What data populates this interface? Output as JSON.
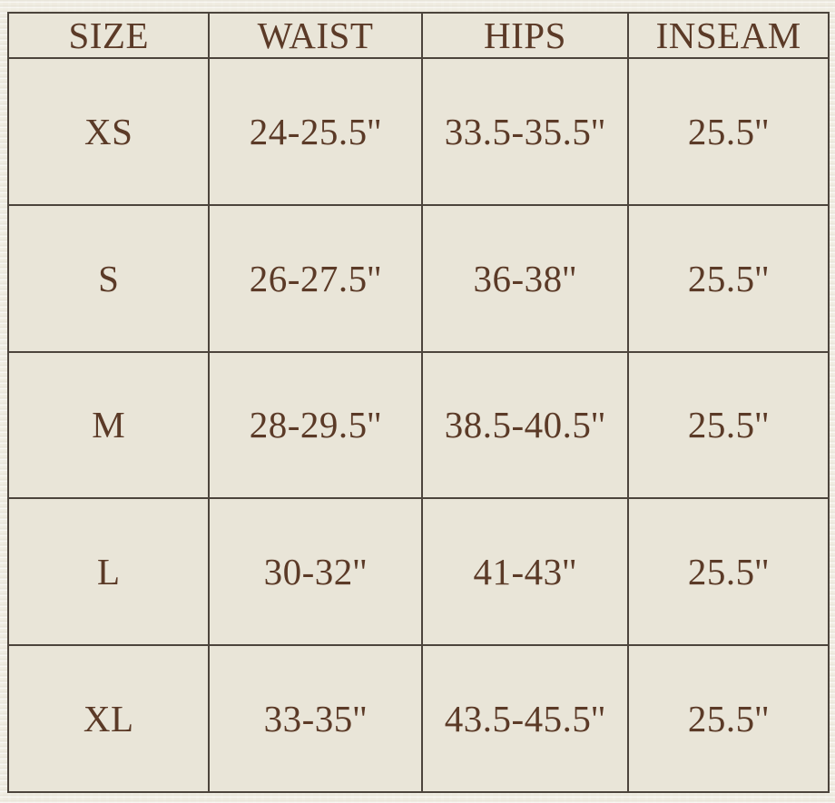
{
  "table": {
    "columns": [
      "SIZE",
      "WAIST",
      "HIPS",
      "INSEAM"
    ],
    "rows": [
      {
        "size": "XS",
        "waist": "24-25.5''",
        "hips": "33.5-35.5''",
        "inseam": "25.5''"
      },
      {
        "size": "S",
        "waist": "26-27.5''",
        "hips": "36-38''",
        "inseam": "25.5''"
      },
      {
        "size": "M",
        "waist": "28-29.5''",
        "hips": "38.5-40.5''",
        "inseam": "25.5''"
      },
      {
        "size": "L",
        "waist": "30-32''",
        "hips": "41-43''",
        "inseam": "25.5''"
      },
      {
        "size": "XL",
        "waist": "33-35''",
        "hips": "43.5-45.5''",
        "inseam": "25.5''"
      }
    ]
  },
  "colors": {
    "cell_background": "#e9e5d8",
    "outer_background": "#efece1",
    "border": "#4c443c",
    "text": "#5b3a27"
  },
  "chart_data": {
    "type": "table",
    "title": "",
    "columns": [
      "SIZE",
      "WAIST",
      "HIPS",
      "INSEAM"
    ],
    "rows": [
      [
        "XS",
        "24-25.5''",
        "33.5-35.5''",
        "25.5''"
      ],
      [
        "S",
        "26-27.5''",
        "36-38''",
        "25.5''"
      ],
      [
        "M",
        "28-29.5''",
        "38.5-40.5''",
        "25.5''"
      ],
      [
        "L",
        "30-32''",
        "41-43''",
        "25.5''"
      ],
      [
        "XL",
        "33-35''",
        "43.5-45.5''",
        "25.5''"
      ]
    ],
    "layout": {
      "grid": true,
      "header_row": true,
      "inch_unit": "double prime marks"
    }
  }
}
